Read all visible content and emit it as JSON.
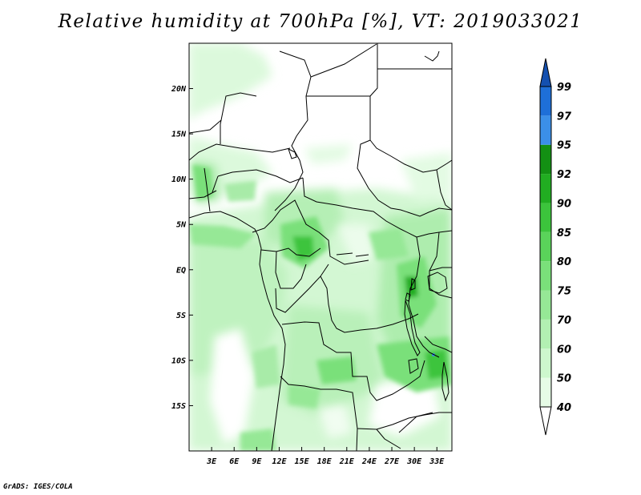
{
  "title": "Relative humidity at 700hPa [%], VT: 2019033021",
  "credit": "GrADS: IGES/COLA",
  "map": {
    "lon_range": [
      0,
      35
    ],
    "lat_range": [
      -20,
      25
    ],
    "lat_ticks": [
      "20N",
      "15N",
      "10N",
      "5N",
      "EQ",
      "5S",
      "10S",
      "15S"
    ],
    "lat_tick_values": [
      20,
      15,
      10,
      5,
      0,
      -5,
      -10,
      -15
    ],
    "lon_ticks": [
      "3E",
      "6E",
      "9E",
      "12E",
      "15E",
      "18E",
      "21E",
      "24E",
      "27E",
      "30E",
      "33E"
    ],
    "lon_tick_values": [
      3,
      6,
      9,
      12,
      15,
      18,
      21,
      24,
      27,
      30,
      33
    ]
  },
  "colorbar": {
    "levels": [
      "40",
      "50",
      "60",
      "70",
      "75",
      "80",
      "85",
      "90",
      "92",
      "95",
      "97",
      "99"
    ],
    "colors": [
      "#ffffff",
      "#e6fce6",
      "#cdf7cd",
      "#b2f0b2",
      "#96e896",
      "#7ae07a",
      "#5ad35a",
      "#3cc43c",
      "#21ad21",
      "#139013",
      "#3b8fe8",
      "#1e6fd8",
      "#1450b0"
    ]
  }
}
